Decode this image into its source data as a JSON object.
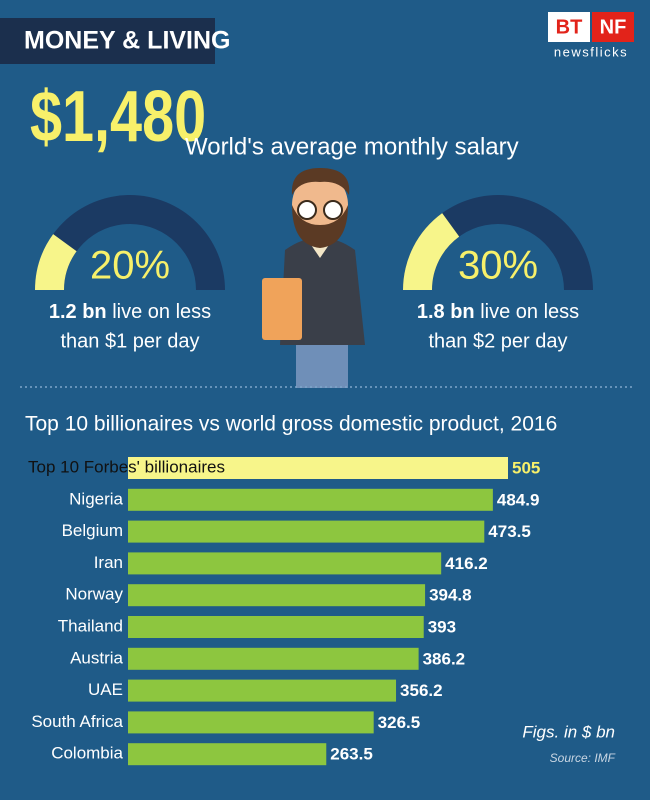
{
  "header": {
    "title": "MONEY & LIVING",
    "logo": {
      "left": "BT",
      "right": "NF",
      "sub": "newsflicks"
    }
  },
  "hero": {
    "amount": "$1,480",
    "caption": "World's average monthly salary"
  },
  "gauges": [
    {
      "value": 20,
      "value_label": "20%",
      "bold": "1.2 bn",
      "line1": "live on less",
      "line2": "than $1 per day"
    },
    {
      "value": 30,
      "value_label": "30%",
      "bold": "1.8 bn",
      "line1": "live on less",
      "line2": "than $2 per day"
    }
  ],
  "chart_data": {
    "type": "bar",
    "orientation": "horizontal",
    "title": "Top 10 billionaires vs world gross domestic product, 2016",
    "categories": [
      "Top 10 Forbes' billionaires",
      "Nigeria",
      "Belgium",
      "Iran",
      "Norway",
      "Thailand",
      "Austria",
      "UAE",
      "South Africa",
      "Colombia"
    ],
    "values": [
      505,
      484.9,
      473.5,
      416.2,
      394.8,
      393,
      386.2,
      356.2,
      326.5,
      263.5
    ],
    "colors": [
      "#f7f58a",
      "#8dc63f",
      "#8dc63f",
      "#8dc63f",
      "#8dc63f",
      "#8dc63f",
      "#8dc63f",
      "#8dc63f",
      "#8dc63f",
      "#8dc63f"
    ],
    "label_colors": [
      "#f7f06a",
      "#ffffff",
      "#ffffff",
      "#ffffff",
      "#ffffff",
      "#ffffff",
      "#ffffff",
      "#ffffff",
      "#ffffff",
      "#ffffff"
    ],
    "note": "Figs. in $ bn",
    "source": "Source: IMF"
  }
}
